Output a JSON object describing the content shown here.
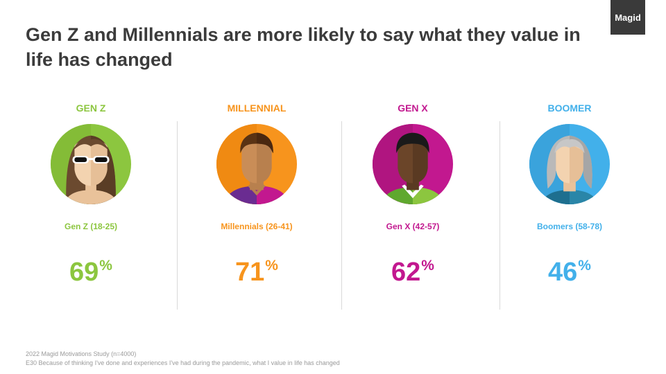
{
  "title": "Gen Z and Millennials are more likely to say what they value in life has changed",
  "logo": "Magid",
  "chart_data": {
    "type": "bar",
    "title": "Gen Z and Millennials are more likely to say what they value in life has changed",
    "categories": [
      "Gen Z (18-25)",
      "Millennials (26-41)",
      "Gen X (42-57)",
      "Boomers (58-78)"
    ],
    "values": [
      69,
      71,
      62,
      46
    ],
    "unit": "%"
  },
  "generations": [
    {
      "heading": "GEN Z",
      "label": "Gen Z (18-25)",
      "value": "69",
      "unit": "%",
      "color": "#8cc63f",
      "avatar_icon": "female-sunglasses-avatar-icon"
    },
    {
      "heading": "MILLENNIAL",
      "label": "Millennials (26-41)",
      "value": "71",
      "unit": "%",
      "color": "#f7941d",
      "avatar_icon": "male-millennial-avatar-icon"
    },
    {
      "heading": "GEN X",
      "label": "Gen X (42-57)",
      "value": "62",
      "unit": "%",
      "color": "#c2188f",
      "avatar_icon": "male-genx-avatar-icon"
    },
    {
      "heading": "BOOMER",
      "label": "Boomers (58-78)",
      "value": "46",
      "unit": "%",
      "color": "#42b0ea",
      "avatar_icon": "female-gray-hair-avatar-icon"
    }
  ],
  "footnotes": {
    "source": "2022 Magid Motivations Study (n=4000)",
    "question": "E30 Because of thinking I've done and experiences I've had during the pandemic, what I value in life has changed"
  }
}
